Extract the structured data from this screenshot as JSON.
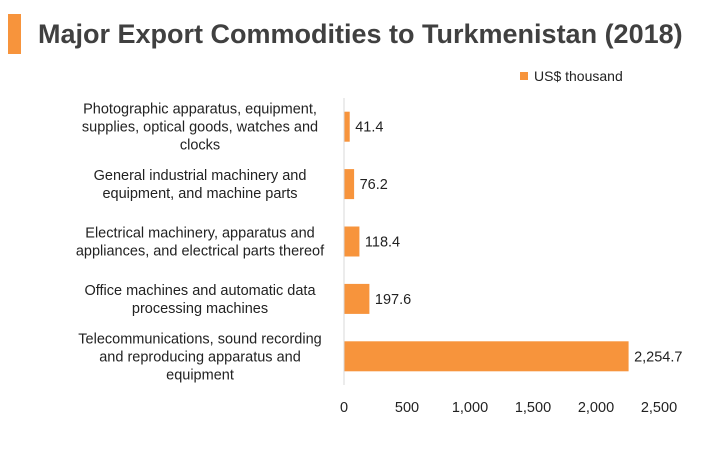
{
  "header": {
    "title": "Major Export Commodities to Turkmenistan (2018)"
  },
  "colors": {
    "accent": "#f7943c",
    "bar": "#f7943c",
    "axis": "#d9d9d9"
  },
  "chart_data": {
    "type": "bar",
    "orientation": "horizontal",
    "title": "Major Export Commodities to Turkmenistan (2018)",
    "categories": [
      [
        "Photographic apparatus, equipment,",
        "supplies, optical goods, watches and",
        "clocks"
      ],
      [
        "General industrial machinery and",
        "equipment, and machine parts"
      ],
      [
        "Electrical machinery, apparatus and",
        "appliances, and electrical parts thereof"
      ],
      [
        "Office machines and automatic data",
        "processing machines"
      ],
      [
        "Telecommunications, sound recording",
        "and reproducing apparatus and",
        "equipment"
      ]
    ],
    "series": [
      {
        "name": "US$ thousand",
        "values": [
          41.4,
          76.2,
          118.4,
          197.6,
          2254.7
        ],
        "value_labels": [
          "41.4",
          "76.2",
          "118.4",
          "197.6",
          "2,254.7"
        ]
      }
    ],
    "xlim": [
      0,
      2500
    ],
    "xticks": [
      0,
      500,
      1000,
      1500,
      2000,
      2500
    ],
    "xtick_labels": [
      "0",
      "500",
      "1,000",
      "1,500",
      "2,000",
      "2,500"
    ],
    "legend_position": "top-right",
    "grid": false
  }
}
